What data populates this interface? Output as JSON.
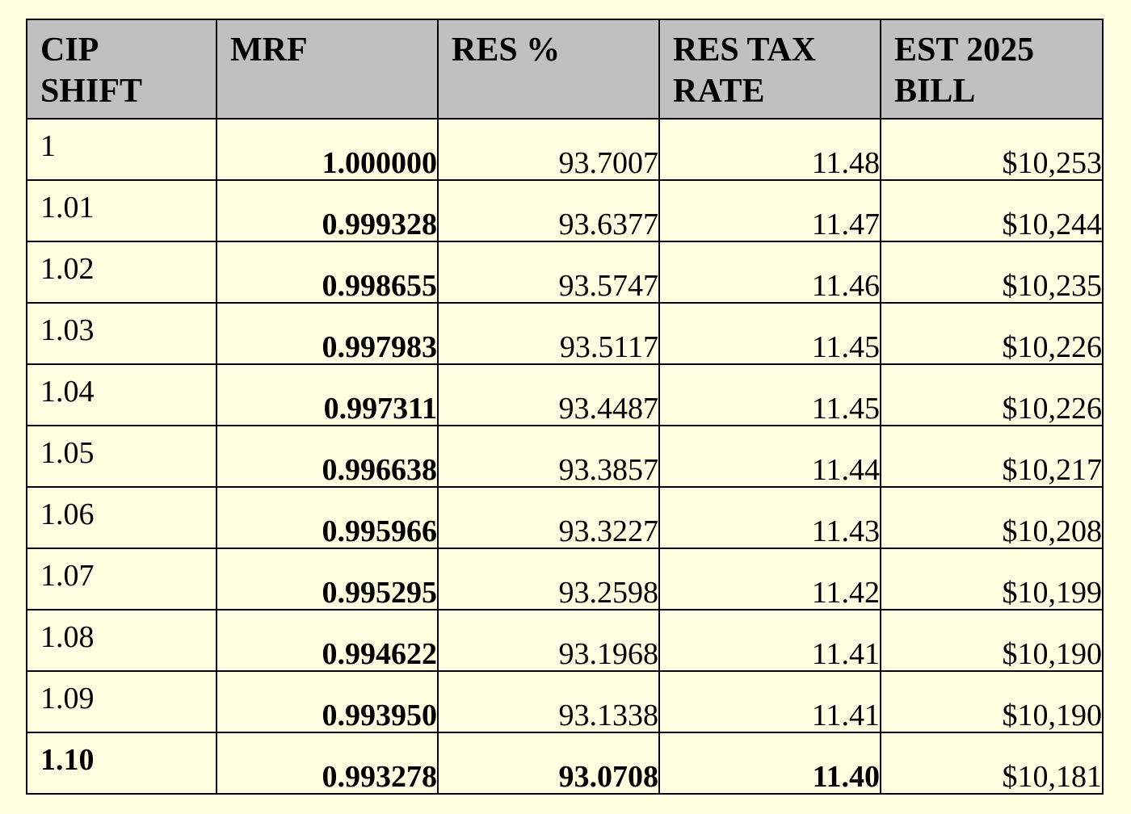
{
  "table": {
    "headers": [
      "CIP SHIFT",
      "MRF",
      "RES %",
      "RES TAX RATE",
      "EST 2025 BILL"
    ],
    "rows": [
      {
        "cells": [
          "1",
          "1.000000",
          "93.7007",
          "11.48",
          "$10,253"
        ],
        "bold": [
          false,
          true,
          false,
          false,
          false
        ]
      },
      {
        "cells": [
          "1.01",
          "0.999328",
          "93.6377",
          "11.47",
          "$10,244"
        ],
        "bold": [
          false,
          true,
          false,
          false,
          false
        ]
      },
      {
        "cells": [
          "1.02",
          "0.998655",
          "93.5747",
          "11.46",
          "$10,235"
        ],
        "bold": [
          false,
          true,
          false,
          false,
          false
        ]
      },
      {
        "cells": [
          "1.03",
          "0.997983",
          "93.5117",
          "11.45",
          "$10,226"
        ],
        "bold": [
          false,
          true,
          false,
          false,
          false
        ]
      },
      {
        "cells": [
          "1.04",
          "0.997311",
          "93.4487",
          "11.45",
          "$10,226"
        ],
        "bold": [
          false,
          true,
          false,
          false,
          false
        ]
      },
      {
        "cells": [
          "1.05",
          "0.996638",
          "93.3857",
          "11.44",
          "$10,217"
        ],
        "bold": [
          false,
          true,
          false,
          false,
          false
        ]
      },
      {
        "cells": [
          "1.06",
          "0.995966",
          "93.3227",
          "11.43",
          "$10,208"
        ],
        "bold": [
          false,
          true,
          false,
          false,
          false
        ]
      },
      {
        "cells": [
          "1.07",
          "0.995295",
          "93.2598",
          "11.42",
          "$10,199"
        ],
        "bold": [
          false,
          true,
          false,
          false,
          false
        ]
      },
      {
        "cells": [
          "1.08",
          "0.994622",
          "93.1968",
          "11.41",
          "$10,190"
        ],
        "bold": [
          false,
          true,
          false,
          false,
          false
        ]
      },
      {
        "cells": [
          "1.09",
          "0.993950",
          "93.1338",
          "11.41",
          "$10,190"
        ],
        "bold": [
          false,
          true,
          false,
          false,
          false
        ]
      },
      {
        "cells": [
          "1.10",
          "0.993278",
          "93.0708",
          "11.40",
          "$10,181"
        ],
        "bold": [
          true,
          true,
          true,
          true,
          false
        ]
      }
    ]
  },
  "colors": {
    "page_background": "#FFFFE1",
    "header_background": "#C0C0C0",
    "border": "#000000"
  }
}
